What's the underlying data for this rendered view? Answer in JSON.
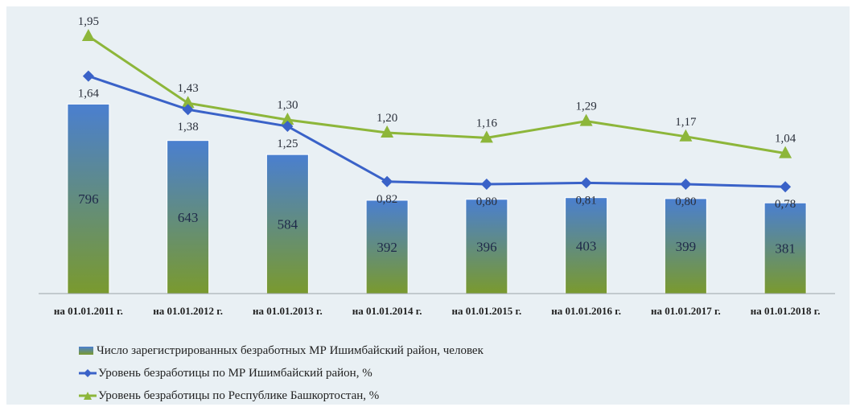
{
  "chart_data": {
    "type": "bar+line",
    "categories": [
      "на 01.01.2011 г.",
      "на 01.01.2012 г.",
      "на 01.01.2013 г.",
      "на 01.01.2014 г.",
      "на 01.01.2015 г.",
      "на 01.01.2016 г.",
      "на 01.01.2017 г.",
      "на 01.01.2018 г."
    ],
    "series": [
      {
        "name": "Число зарегистрированных безработных МР Ишимбайский район, человек",
        "kind": "bar",
        "values": [
          796,
          643,
          584,
          392,
          396,
          403,
          399,
          381
        ],
        "labels": [
          "796",
          "643",
          "584",
          "392",
          "396",
          "403",
          "399",
          "381"
        ],
        "color_top": "#4a7fd0",
        "color_bottom": "#7a9a2e"
      },
      {
        "name": "Уровень безработицы по МР Ишимбайский район, %",
        "kind": "line",
        "marker": "diamond",
        "values": [
          1.64,
          1.38,
          1.25,
          0.82,
          0.8,
          0.81,
          0.8,
          0.78
        ],
        "labels": [
          "1,64",
          "1,38",
          "1,25",
          "0,82",
          "0,80",
          "0,81",
          "0,80",
          "0,78"
        ],
        "color": "#3a62c8"
      },
      {
        "name": "Уровень безработицы по Республике Башкортостан, %",
        "kind": "line",
        "marker": "triangle",
        "values": [
          1.95,
          1.43,
          1.3,
          1.2,
          1.16,
          1.29,
          1.17,
          1.04
        ],
        "labels": [
          "1,95",
          "1,43",
          "1,30",
          "1,20",
          "1,16",
          "1,29",
          "1,17",
          "1,04"
        ],
        "color": "#8db63a"
      }
    ],
    "legend_position": "bottom-left",
    "grid": false
  }
}
